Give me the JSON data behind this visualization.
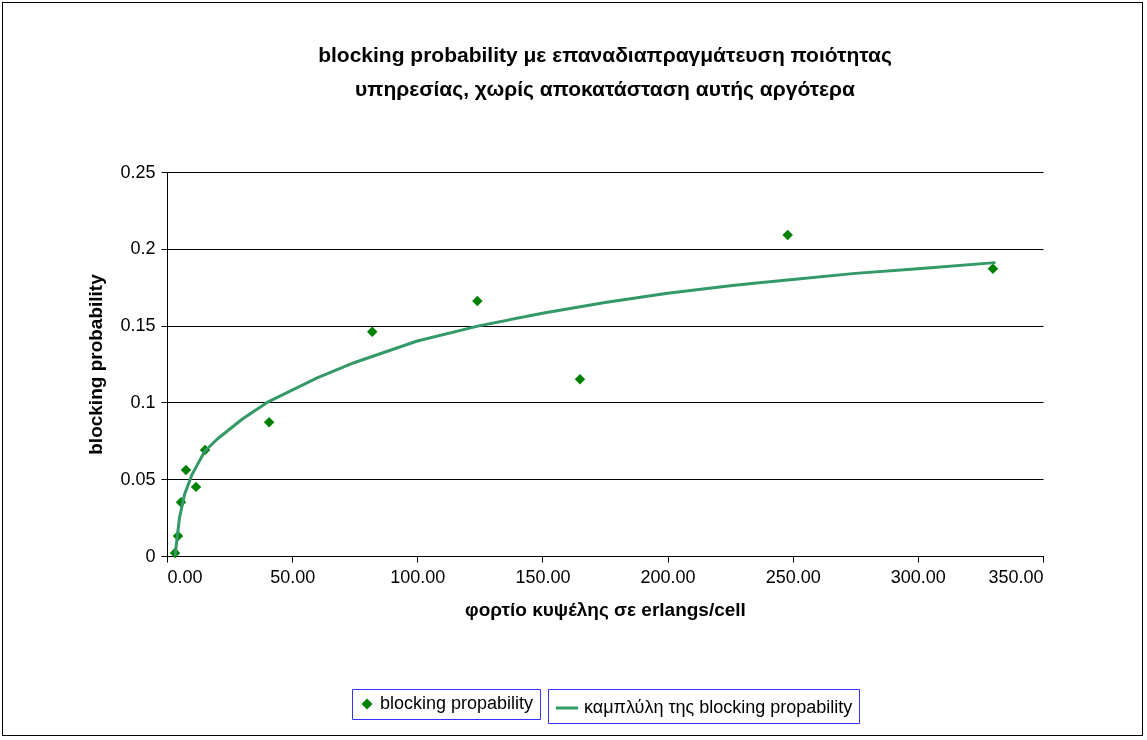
{
  "chart_data": {
    "type": "scatter",
    "title": "blocking probability με επαναδιαπραγμάτευση ποιότητας υπηρεσίας, χωρίς αποκατάσταση αυτής αργότερα",
    "xlabel": "φορτίο κυψέλης σε erlangs/cell",
    "ylabel": "blocking probability",
    "xlim": [
      0,
      350
    ],
    "xticks": [
      {
        "value": 0,
        "label": "0.00"
      },
      {
        "value": 50,
        "label": "50.00"
      },
      {
        "value": 100,
        "label": "100.00"
      },
      {
        "value": 150,
        "label": "150.00"
      },
      {
        "value": 200,
        "label": "200.00"
      },
      {
        "value": 250,
        "label": "250.00"
      },
      {
        "value": 300,
        "label": "300.00"
      },
      {
        "value": 350,
        "label": "350.00"
      }
    ],
    "ylim": [
      0,
      0.25
    ],
    "yticks": [
      0,
      0.05,
      0.1,
      0.15,
      0.2,
      0.25
    ],
    "grid": "y",
    "legend": "bottom",
    "series": [
      {
        "name": "blocking propability",
        "type": "scatter",
        "marker": "diamond",
        "color": "#008000",
        "x": [
          3.2,
          4.4,
          5.6,
          7.6,
          11.6,
          15.2,
          40.8,
          82,
          124,
          165,
          248,
          330
        ],
        "values": [
          0.002,
          0.013,
          0.035,
          0.056,
          0.045,
          0.069,
          0.087,
          0.146,
          0.166,
          0.115,
          0.209,
          0.187
        ]
      },
      {
        "name": "καμπλύλη της blocking propability",
        "type": "line",
        "marker": "none",
        "line_style": "solid",
        "color": "#339966",
        "x": [
          3.2,
          5,
          7,
          10,
          15,
          20,
          30,
          40,
          50,
          60,
          75,
          100,
          125,
          150,
          175,
          200,
          225,
          250,
          275,
          300,
          331
        ],
        "values": [
          0.0,
          0.025,
          0.04,
          0.053,
          0.068,
          0.076,
          0.089,
          0.1,
          0.108,
          0.116,
          0.126,
          0.14,
          0.15,
          0.158,
          0.165,
          0.171,
          0.176,
          0.18,
          0.184,
          0.187,
          0.191
        ]
      }
    ]
  }
}
